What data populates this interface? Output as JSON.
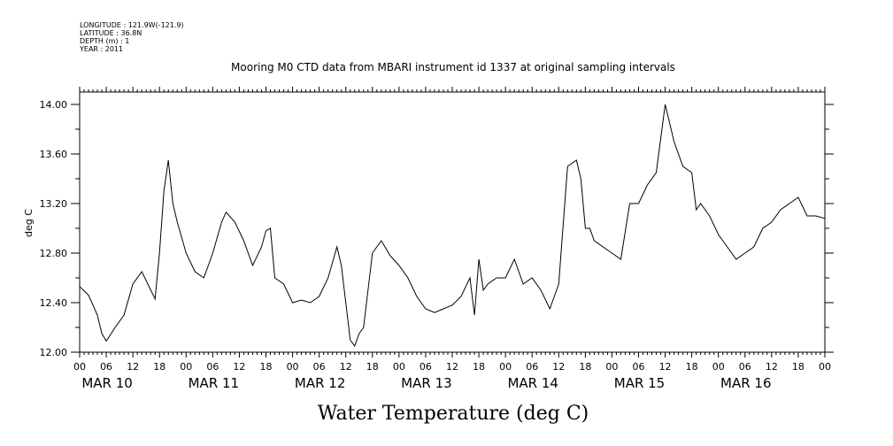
{
  "header": {
    "meta_lines": [
      "LONGITUDE : 121.9W(-121.9)",
      "LATITUDE : 36.8N",
      "DEPTH (m) : 1",
      "YEAR : 2011"
    ]
  },
  "chart_data": {
    "type": "line",
    "title": "Mooring M0 CTD data from MBARI instrument id 1337 at original sampling intervals",
    "xlabel": "Water Temperature (deg C)",
    "ylabel": "deg C",
    "ylim": [
      12.0,
      14.1
    ],
    "y_ticks": [
      "12.00",
      "12.40",
      "12.80",
      "13.20",
      "13.60",
      "14.00"
    ],
    "x_hour_labels": [
      "00",
      "06",
      "12",
      "18",
      "00",
      "06",
      "12",
      "18",
      "00",
      "06",
      "12",
      "18",
      "00",
      "06",
      "12",
      "18",
      "00",
      "06",
      "12",
      "18",
      "00",
      "06",
      "12",
      "18",
      "00",
      "06",
      "12",
      "18",
      "00"
    ],
    "x_day_labels": [
      "MAR 10",
      "MAR 11",
      "MAR 12",
      "MAR 13",
      "MAR 14",
      "MAR 15",
      "MAR 16"
    ],
    "grid": false,
    "series": [
      {
        "x": [
          "2011-03-10T00:00",
          "2011-03-10T02:00",
          "2011-03-10T04:00",
          "2011-03-10T05:00",
          "2011-03-10T06:00",
          "2011-03-10T08:00",
          "2011-03-10T10:00",
          "2011-03-10T12:00",
          "2011-03-10T14:00",
          "2011-03-10T17:00",
          "2011-03-10T18:00",
          "2011-03-10T19:00",
          "2011-03-10T20:00",
          "2011-03-10T21:00",
          "2011-03-10T22:00",
          "2011-03-11T00:00",
          "2011-03-11T02:00",
          "2011-03-11T04:00",
          "2011-03-11T06:00",
          "2011-03-11T08:00",
          "2011-03-11T09:00",
          "2011-03-11T11:00",
          "2011-03-11T13:00",
          "2011-03-11T15:00",
          "2011-03-11T17:00",
          "2011-03-11T18:00",
          "2011-03-11T19:00",
          "2011-03-11T20:00",
          "2011-03-11T22:00",
          "2011-03-12T00:00",
          "2011-03-12T02:00",
          "2011-03-12T04:00",
          "2011-03-12T06:00",
          "2011-03-12T08:00",
          "2011-03-12T10:00",
          "2011-03-12T11:00",
          "2011-03-12T12:00",
          "2011-03-12T13:00",
          "2011-03-12T14:00",
          "2011-03-12T15:00",
          "2011-03-12T16:00",
          "2011-03-12T18:00",
          "2011-03-12T20:00",
          "2011-03-12T22:00",
          "2011-03-13T00:00",
          "2011-03-13T02:00",
          "2011-03-13T04:00",
          "2011-03-13T06:00",
          "2011-03-13T08:00",
          "2011-03-13T10:00",
          "2011-03-13T12:00",
          "2011-03-13T14:00",
          "2011-03-13T16:00",
          "2011-03-13T17:00",
          "2011-03-13T18:00",
          "2011-03-13T19:00",
          "2011-03-13T20:00",
          "2011-03-13T22:00",
          "2011-03-14T00:00",
          "2011-03-14T02:00",
          "2011-03-14T04:00",
          "2011-03-14T06:00",
          "2011-03-14T08:00",
          "2011-03-14T10:00",
          "2011-03-14T12:00",
          "2011-03-14T14:00",
          "2011-03-14T16:00",
          "2011-03-14T17:00",
          "2011-03-14T18:00",
          "2011-03-14T19:00",
          "2011-03-14T20:00",
          "2011-03-14T22:00",
          "2011-03-15T00:00",
          "2011-03-15T02:00",
          "2011-03-15T04:00",
          "2011-03-15T06:00",
          "2011-03-15T08:00",
          "2011-03-15T10:00",
          "2011-03-15T12:00",
          "2011-03-15T14:00",
          "2011-03-15T16:00",
          "2011-03-15T18:00",
          "2011-03-15T19:00",
          "2011-03-15T20:00",
          "2011-03-15T22:00",
          "2011-03-16T00:00",
          "2011-03-16T02:00",
          "2011-03-16T04:00",
          "2011-03-16T06:00",
          "2011-03-16T08:00",
          "2011-03-16T10:00",
          "2011-03-16T12:00",
          "2011-03-16T14:00",
          "2011-03-16T16:00",
          "2011-03-16T18:00",
          "2011-03-16T20:00",
          "2011-03-16T22:00",
          "2011-03-17T00:00"
        ],
        "values": [
          12.53,
          12.46,
          12.3,
          12.15,
          12.09,
          12.2,
          12.3,
          12.55,
          12.65,
          12.43,
          12.8,
          13.3,
          13.55,
          13.2,
          13.05,
          12.8,
          12.65,
          12.6,
          12.8,
          13.05,
          13.13,
          13.05,
          12.9,
          12.7,
          12.85,
          12.98,
          13.0,
          12.6,
          12.55,
          12.4,
          12.42,
          12.4,
          12.45,
          12.6,
          12.85,
          12.7,
          12.4,
          12.1,
          12.05,
          12.15,
          12.2,
          12.8,
          12.9,
          12.78,
          12.7,
          12.6,
          12.45,
          12.35,
          12.32,
          12.35,
          12.38,
          12.45,
          12.6,
          12.3,
          12.75,
          12.5,
          12.55,
          12.6,
          12.6,
          12.75,
          12.55,
          12.6,
          12.5,
          12.35,
          12.55,
          13.5,
          13.55,
          13.4,
          13.0,
          13.0,
          12.9,
          12.85,
          12.8,
          12.75,
          13.2,
          13.2,
          13.35,
          13.45,
          14.0,
          13.7,
          13.5,
          13.45,
          13.15,
          13.2,
          13.1,
          12.95,
          12.85,
          12.75,
          12.8,
          12.85,
          13.0,
          13.05,
          13.15,
          13.2,
          13.25,
          13.1,
          13.1,
          13.08
        ]
      }
    ]
  }
}
